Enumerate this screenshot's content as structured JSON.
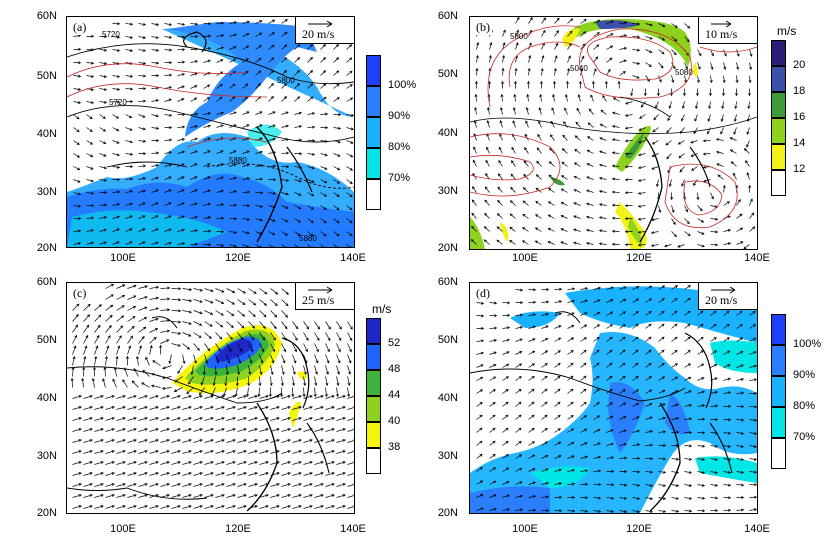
{
  "panels": [
    {
      "label": "(a)",
      "ref_vector": "20 m/s",
      "unit": "",
      "colorbar": {
        "labels": [
          "100%",
          "90%",
          "80%",
          "70%"
        ],
        "colors": [
          "#ffffff",
          "#00e5e5",
          "#19b2ff",
          "#2b7fff",
          "#1f3fff"
        ]
      },
      "contour_labels": [
        "5720",
        "5800",
        "5720",
        "5880",
        "5880"
      ]
    },
    {
      "label": "(b)",
      "ref_vector": "10 m/s",
      "unit": "m/s",
      "colorbar": {
        "labels": [
          "20",
          "18",
          "16",
          "14",
          "12"
        ],
        "colors": [
          "#ffffff",
          "#f2f21a",
          "#8cd21e",
          "#3c9b3c",
          "#3c50aa",
          "#281e78"
        ]
      },
      "contour_labels": [
        "5800",
        "5040",
        "5080"
      ]
    },
    {
      "label": "(c)",
      "ref_vector": "25 m/s",
      "unit": "m/s",
      "colorbar": {
        "labels": [
          "52",
          "48",
          "44",
          "40",
          "38"
        ],
        "colors": [
          "#ffffff",
          "#f5f50a",
          "#8cd21e",
          "#3cb43c",
          "#1e64ff",
          "#1e28c8"
        ]
      },
      "contour_labels": []
    },
    {
      "label": "(d)",
      "ref_vector": "20 m/s",
      "unit": "",
      "colorbar": {
        "labels": [
          "100%",
          "90%",
          "80%",
          "70%"
        ],
        "colors": [
          "#ffffff",
          "#00e5e5",
          "#19b2ff",
          "#2b7fff",
          "#1f3fff"
        ]
      },
      "contour_labels": []
    }
  ],
  "axes": {
    "y_ticks": [
      "60N",
      "50N",
      "40N",
      "30N",
      "20N"
    ],
    "x_ticks": [
      "100E",
      "120E",
      "140E"
    ]
  }
}
